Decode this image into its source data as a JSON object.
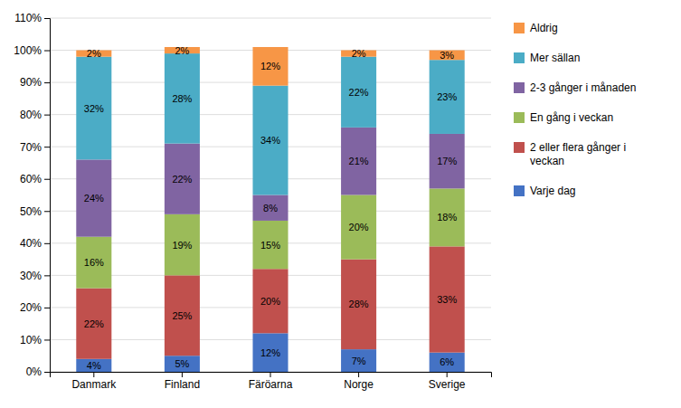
{
  "chart_data": {
    "type": "bar",
    "stacked": true,
    "data_labels": true,
    "grid": true,
    "legend": "right",
    "categories": [
      "Danmark",
      "Finland",
      "Färöarna",
      "Norge",
      "Sverige"
    ],
    "series": [
      {
        "name": "Varje dag",
        "color": "#4472C4",
        "values": [
          4,
          5,
          12,
          7,
          6
        ],
        "value_labels": [
          "4%",
          "5%",
          "12%",
          "7%",
          "6%"
        ]
      },
      {
        "name": "2 eller flera gånger i\nveckan",
        "color": "#C0504D",
        "values": [
          22,
          25,
          20,
          28,
          33
        ],
        "value_labels": [
          "22%",
          "25%",
          "20%",
          "28%",
          "33%"
        ]
      },
      {
        "name": "En gång i veckan",
        "color": "#9BBB59",
        "values": [
          16,
          19,
          15,
          20,
          18
        ],
        "value_labels": [
          "16%",
          "19%",
          "15%",
          "20%",
          "18%"
        ]
      },
      {
        "name": "2-3 gånger i månaden",
        "color": "#8064A2",
        "values": [
          24,
          22,
          8,
          21,
          17
        ],
        "value_labels": [
          "24%",
          "22%",
          "8%",
          "21%",
          "17%"
        ]
      },
      {
        "name": "Mer sällan",
        "color": "#4BACC6",
        "values": [
          32,
          28,
          34,
          22,
          23
        ],
        "value_labels": [
          "32%",
          "28%",
          "34%",
          "22%",
          "23%"
        ]
      },
      {
        "name": "Aldrig",
        "color": "#F79646",
        "values": [
          2,
          2,
          12,
          2,
          3
        ],
        "value_labels": [
          "2%",
          "2%",
          "12%",
          "2%",
          "3%"
        ]
      }
    ],
    "ylim": [
      0,
      110
    ],
    "yticks": [
      {
        "value": 0,
        "label": "0%"
      },
      {
        "value": 10,
        "label": "10%"
      },
      {
        "value": 20,
        "label": "20%"
      },
      {
        "value": 30,
        "label": "30%"
      },
      {
        "value": 40,
        "label": "40%"
      },
      {
        "value": 50,
        "label": "50%"
      },
      {
        "value": 60,
        "label": "60%"
      },
      {
        "value": 70,
        "label": "70%"
      },
      {
        "value": 80,
        "label": "80%"
      },
      {
        "value": 90,
        "label": "90%"
      },
      {
        "value": 100,
        "label": "100%"
      },
      {
        "value": 110,
        "label": "110%"
      }
    ]
  }
}
